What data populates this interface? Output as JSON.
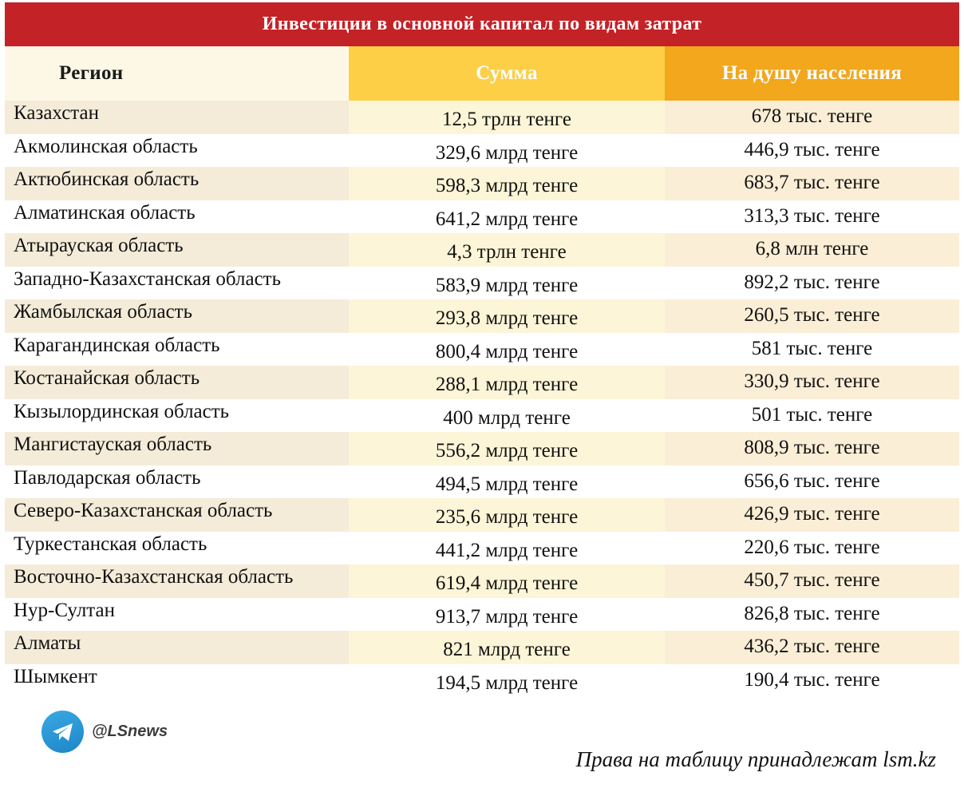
{
  "title": "Инвестиции в основной капитал по видам затрат",
  "columns": {
    "region": "Регион",
    "sum": "Сумма",
    "per_capita": "На душу населения"
  },
  "rows": [
    {
      "region": "Казахстан",
      "sum": "12,5 трлн тенге",
      "per_capita": "678 тыс. тенге"
    },
    {
      "region": "Акмолинская область",
      "sum": "329,6 млрд тенге",
      "per_capita": "446,9 тыс. тенге"
    },
    {
      "region": "Актюбинская область",
      "sum": "598,3 млрд тенге",
      "per_capita": "683,7 тыс. тенге"
    },
    {
      "region": "Алматинская область",
      "sum": "641,2 млрд тенге",
      "per_capita": "313,3 тыс. тенге"
    },
    {
      "region": "Атырауская область",
      "sum": "4,3 трлн тенге",
      "per_capita": "6,8 млн тенге"
    },
    {
      "region": "Западно-Казахстанская область",
      "sum": "583,9 млрд тенге",
      "per_capita": "892,2 тыс. тенге"
    },
    {
      "region": "Жамбылская область",
      "sum": "293,8 млрд тенге",
      "per_capita": "260,5 тыс. тенге"
    },
    {
      "region": "Карагандинская область",
      "sum": "800,4 млрд тенге",
      "per_capita": "581 тыс. тенге"
    },
    {
      "region": "Костанайская область",
      "sum": "288,1 млрд тенге",
      "per_capita": "330,9 тыс. тенге"
    },
    {
      "region": "Кызылординская область",
      "sum": "400 млрд тенге",
      "per_capita": "501 тыс. тенге"
    },
    {
      "region": "Мангистауская область",
      "sum": "556,2 млрд тенге",
      "per_capita": "808,9 тыс. тенге"
    },
    {
      "region": "Павлодарская область",
      "sum": "494,5 млрд тенге",
      "per_capita": "656,6 тыс. тенге"
    },
    {
      "region": "Северо-Казахстанская область",
      "sum": "235,6 млрд тенге",
      "per_capita": "426,9 тыс. тенге"
    },
    {
      "region": "Туркестанская область",
      "sum": "441,2 млрд тенге",
      "per_capita": "220,6 тыс. тенге"
    },
    {
      "region": "Восточно-Казахстанская область",
      "sum": "619,4 млрд тенге",
      "per_capita": "450,7 тыс. тенге"
    },
    {
      "region": "Нур-Султан",
      "sum": "913,7 млрд тенге",
      "per_capita": "826,8 тыс. тенге"
    },
    {
      "region": "Алматы",
      "sum": "821 млрд тенге",
      "per_capita": "436,2 тыс. тенге"
    },
    {
      "region": "Шымкент",
      "sum": "194,5 млрд тенге",
      "per_capita": "190,4 тыс. тенге"
    }
  ],
  "telegram": {
    "icon": "telegram-icon",
    "handle": "@LSnews"
  },
  "copyright": "Права на таблицу принадлежат lsm.kz",
  "colors": {
    "title_bg": "#c32227",
    "sum_header_bg": "#fccf47",
    "per_capita_header_bg": "#f2a71d"
  }
}
